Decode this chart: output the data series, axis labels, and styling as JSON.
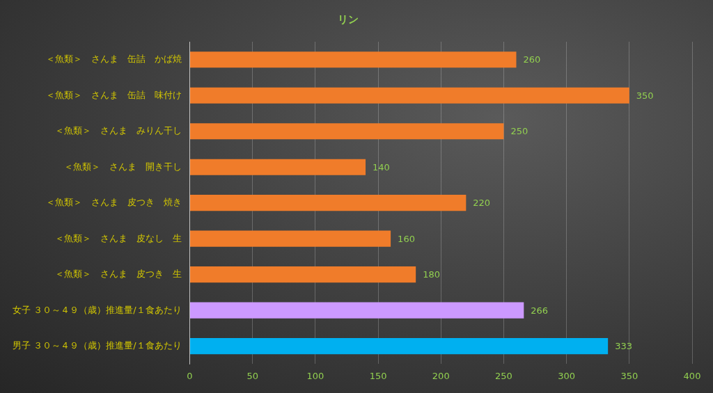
{
  "chart_data": {
    "type": "bar",
    "orientation": "horizontal",
    "title": "リン",
    "categories": [
      "＜魚類＞　さんま　缶詰　かば焼",
      "＜魚類＞　さんま　缶詰　味付け",
      "＜魚類＞　さんま　みりん干し",
      "＜魚類＞　さんま　開き干し",
      "＜魚類＞　さんま　皮つき　焼き",
      "＜魚類＞　さんま　皮なし　生",
      "＜魚類＞　さんま　皮つき　生",
      "女子 ３０～４９（歳）推進量/１食あたり",
      "男子 ３０～４９（歳）推進量/１食あたり"
    ],
    "values": [
      260,
      350,
      250,
      140,
      220,
      160,
      180,
      266,
      333
    ],
    "colors": [
      "#f07c2a",
      "#f07c2a",
      "#f07c2a",
      "#f07c2a",
      "#f07c2a",
      "#f07c2a",
      "#f07c2a",
      "#cc99ff",
      "#00b0f0"
    ],
    "xlim": [
      0,
      400
    ],
    "xticks": [
      0,
      50,
      100,
      150,
      200,
      250,
      300,
      350,
      400
    ],
    "grid": "x",
    "legend": false,
    "data_labels": true
  }
}
